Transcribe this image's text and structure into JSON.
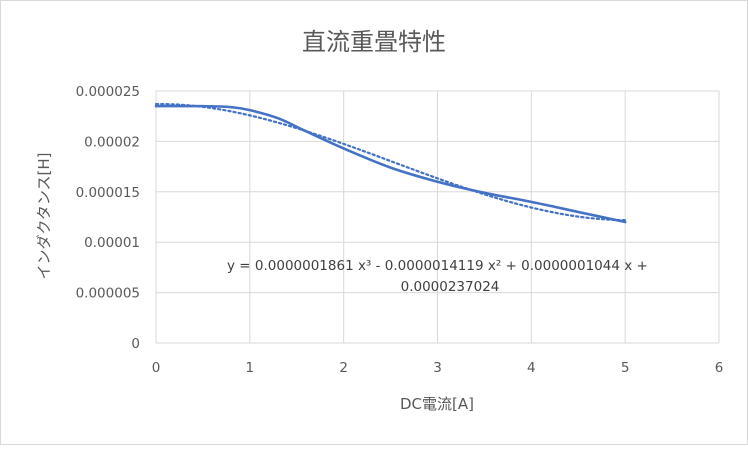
{
  "chart_data": {
    "type": "line",
    "title": "直流重畳特性",
    "xlabel": "DC電流[A]",
    "ylabel": "インダクタンス[H]",
    "xlim": [
      0,
      6
    ],
    "ylim": [
      0,
      2.5e-05
    ],
    "x_ticks": [
      "0",
      "1",
      "2",
      "3",
      "4",
      "5",
      "6"
    ],
    "y_ticks": [
      "0",
      "0.000005",
      "0.00001",
      "0.000015",
      "0.00002",
      "0.000025"
    ],
    "grid": true,
    "legend": "none",
    "series": [
      {
        "style": "solid",
        "color": "#4472C4",
        "x": [
          0,
          0.5,
          0.8,
          1,
          1.3,
          1.6,
          2,
          2.5,
          3,
          3.5,
          4,
          4.5,
          5
        ],
        "y": [
          2.35e-05,
          2.35e-05,
          2.34e-05,
          2.31e-05,
          2.23e-05,
          2.1e-05,
          1.93e-05,
          1.74e-05,
          1.6e-05,
          1.49e-05,
          1.4e-05,
          1.3e-05,
          1.2e-05
        ]
      },
      {
        "style": "dotted",
        "color": "#4472C4",
        "trendline": "poly3",
        "x_range": [
          0,
          5
        ],
        "coefficients": [
          1.861e-07,
          -1.4119e-06,
          1.044e-07,
          2.37024e-05
        ]
      }
    ],
    "annotation": {
      "line1": "y = 0.0000001861 x³ - 0.0000014119 x² + 0.0000001044 x +",
      "line2": "0.0000237024"
    }
  }
}
